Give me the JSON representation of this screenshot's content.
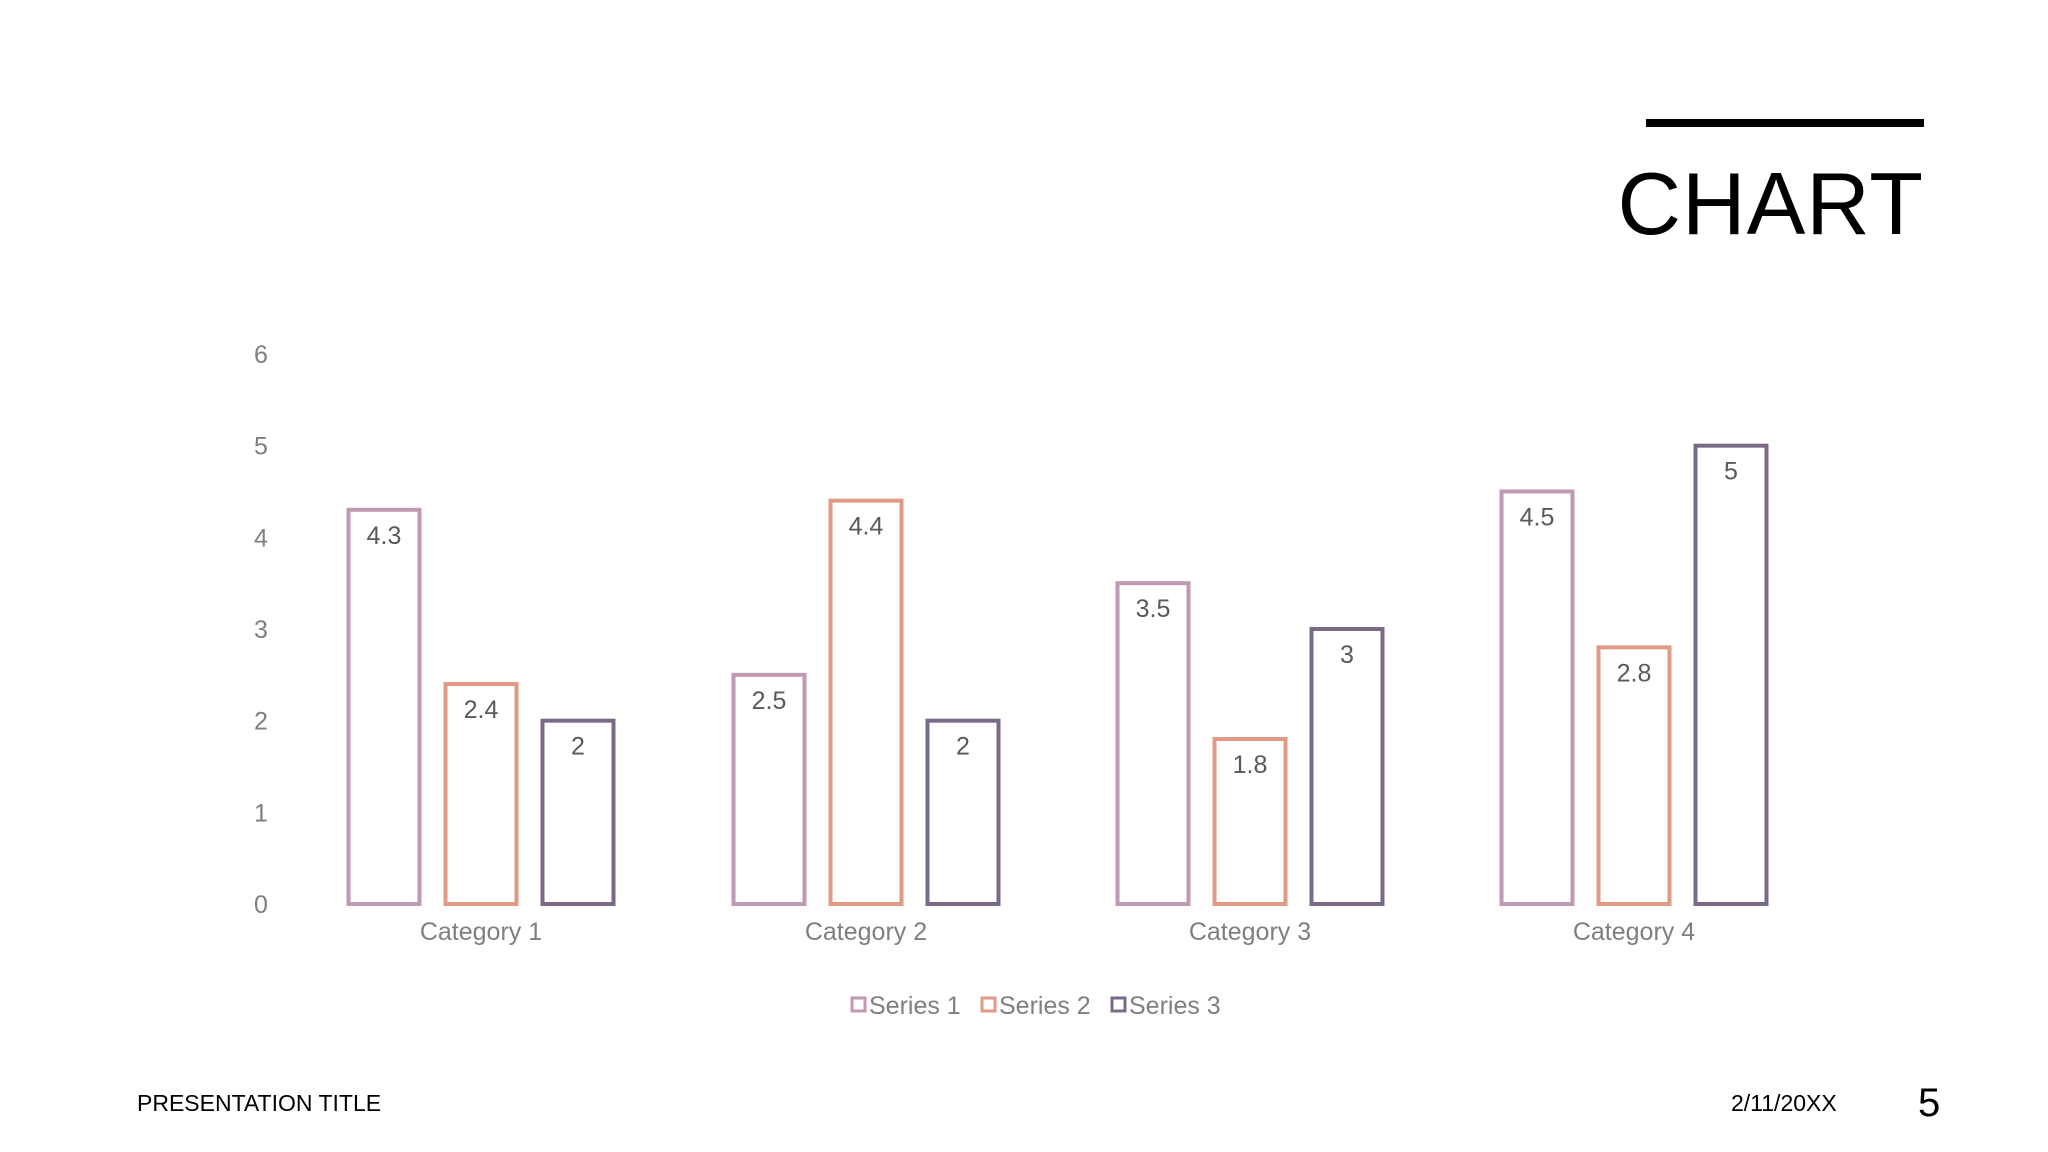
{
  "slide": {
    "title": "CHART",
    "footer_title": "PRESENTATION TITLE",
    "footer_date": "2/11/20XX",
    "page_number": "5"
  },
  "chart_data": {
    "type": "bar",
    "categories": [
      "Category 1",
      "Category 2",
      "Category 3",
      "Category 4"
    ],
    "series": [
      {
        "name": "Series 1",
        "values": [
          4.3,
          2.5,
          3.5,
          4.5
        ],
        "color": "#c199b3",
        "labels": [
          "4.3",
          "2.5",
          "3.5",
          "4.5"
        ]
      },
      {
        "name": "Series 2",
        "values": [
          2.4,
          4.4,
          1.8,
          2.8
        ],
        "color": "#e09a86",
        "labels": [
          "2.4",
          "4.4",
          "1.8",
          "2.8"
        ]
      },
      {
        "name": "Series 3",
        "values": [
          2,
          2,
          3,
          5
        ],
        "color": "#7b6a85",
        "labels": [
          "2",
          "2",
          "3",
          "5"
        ]
      }
    ],
    "yticks": [
      "0",
      "1",
      "2",
      "3",
      "4",
      "5",
      "6"
    ],
    "ylim": [
      0,
      6
    ],
    "grid": false,
    "legend": "bottom",
    "data_labels": true,
    "bar_style": "outline"
  }
}
